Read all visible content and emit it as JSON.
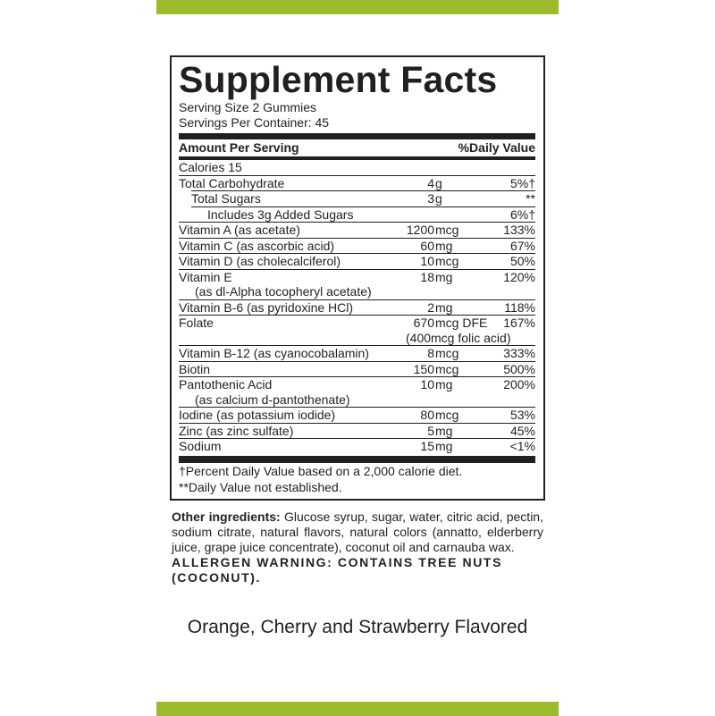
{
  "colors": {
    "accent_bar": "#9bbb2c",
    "text": "#231f20"
  },
  "panel": {
    "title": "Supplement Facts",
    "serving_size": "Serving Size 2 Gummies",
    "servings_per_container": "Servings Per Container: 45",
    "header_left": "Amount Per Serving",
    "header_right": "%Daily Value",
    "calories": "Calories  15",
    "rows": [
      {
        "name": "Total Carbohydrate",
        "num": "4",
        "unit": "g",
        "dv": "5%†"
      },
      {
        "name": "Total Sugars",
        "num": "3",
        "unit": "g",
        "dv": "**"
      },
      {
        "name": "Includes 3g Added Sugars",
        "num": "",
        "unit": "",
        "dv": "6%†"
      },
      {
        "name": "Vitamin A (as acetate)",
        "num": "1200",
        "unit": "mcg",
        "dv": "133%"
      },
      {
        "name": "Vitamin C (as ascorbic acid)",
        "num": "60",
        "unit": "mg",
        "dv": "67%"
      },
      {
        "name": "Vitamin D (as cholecalciferol)",
        "num": "10",
        "unit": "mcg",
        "dv": "50%"
      },
      {
        "name": "Vitamin E",
        "sub": "(as dl-Alpha tocopheryl acetate)",
        "num": "18",
        "unit": "mg",
        "dv": "120%"
      },
      {
        "name": "Vitamin B-6 (as pyridoxine HCl)",
        "num": "2",
        "unit": "mg",
        "dv": "118%"
      },
      {
        "name": "Folate",
        "num": "670",
        "unit": "mcg DFE",
        "extra": "(400mcg folic acid)",
        "dv": "167%"
      },
      {
        "name": "Vitamin B-12 (as cyanocobalamin)",
        "num": "8",
        "unit": "mcg",
        "dv": "333%"
      },
      {
        "name": "Biotin",
        "num": "150",
        "unit": "mcg",
        "dv": "500%"
      },
      {
        "name": "Pantothenic Acid",
        "sub": "(as calcium d-pantothenate)",
        "num": "10",
        "unit": "mg",
        "dv": "200%"
      },
      {
        "name": "Iodine (as potassium iodide)",
        "num": "80",
        "unit": "mcg",
        "dv": "53%"
      },
      {
        "name": "Zinc (as zinc sulfate)",
        "num": "5",
        "unit": "mg",
        "dv": "45%"
      },
      {
        "name": "Sodium",
        "num": "15",
        "unit": "mg",
        "dv": "<1%"
      }
    ],
    "footnote_1": "†Percent Daily Value based on a 2,000 calorie diet.",
    "footnote_2": "**Daily Value not established."
  },
  "ingredients": {
    "label": "Other ingredients:",
    "text": " Glucose syrup, sugar, water, citric acid, pectin, sodium citrate, natural flavors, natural colors (annatto, elderberry juice, grape juice concentrate), coconut oil and carnauba wax.",
    "allergen": "ALLERGEN WARNING: CONTAINS TREE NUTS (COCONUT)."
  },
  "flavor": "Orange, Cherry and Strawberry Flavored"
}
